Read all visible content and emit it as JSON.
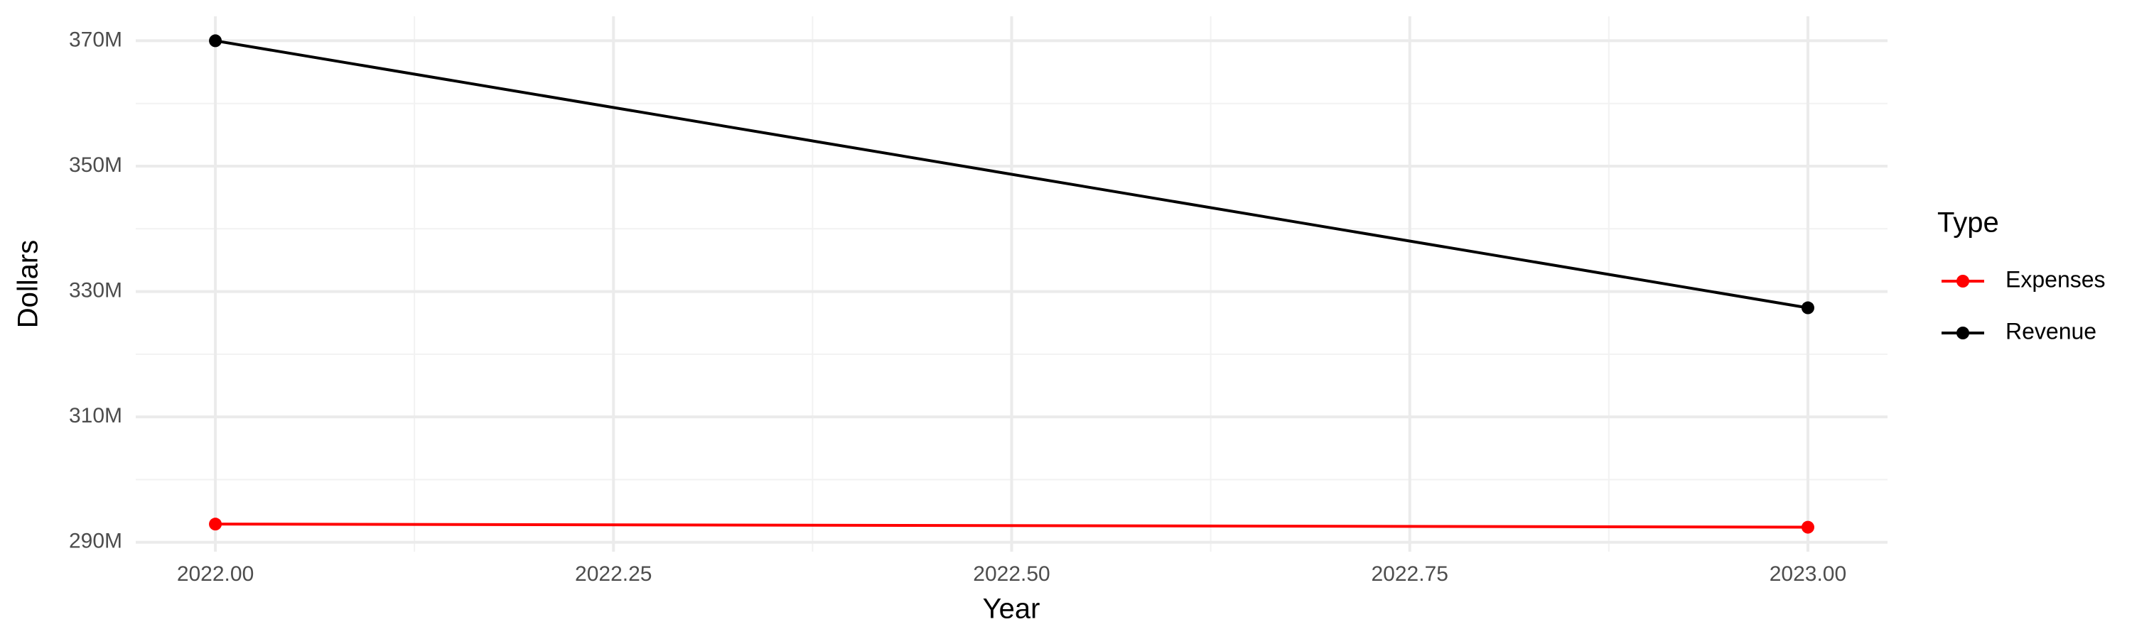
{
  "chart_data": {
    "type": "line",
    "x_label": "Year",
    "y_label": "Dollars",
    "legend_title": "Type",
    "x": [
      2022,
      2023
    ],
    "series": [
      {
        "name": "Expenses",
        "color": "#ff0000",
        "values": [
          292900000,
          292400000
        ]
      },
      {
        "name": "Revenue",
        "color": "#000000",
        "values": [
          370000000,
          327400000
        ]
      }
    ],
    "xlim": [
      2021.95,
      2023.05
    ],
    "xticks": [
      {
        "value": 2022,
        "label": "2022.00"
      },
      {
        "value": 2022.25,
        "label": "2022.25"
      },
      {
        "value": 2022.5,
        "label": "2022.50"
      },
      {
        "value": 2022.75,
        "label": "2022.75"
      },
      {
        "value": 2023,
        "label": "2023.00"
      }
    ],
    "ylim": [
      288500000,
      373900000
    ],
    "yticks": [
      {
        "value": 290000000,
        "label": "290M"
      },
      {
        "value": 310000000,
        "label": "310M"
      },
      {
        "value": 330000000,
        "label": "330M"
      },
      {
        "value": 350000000,
        "label": "350M"
      },
      {
        "value": 370000000,
        "label": "370M"
      }
    ],
    "grid": true,
    "legend": "right"
  }
}
